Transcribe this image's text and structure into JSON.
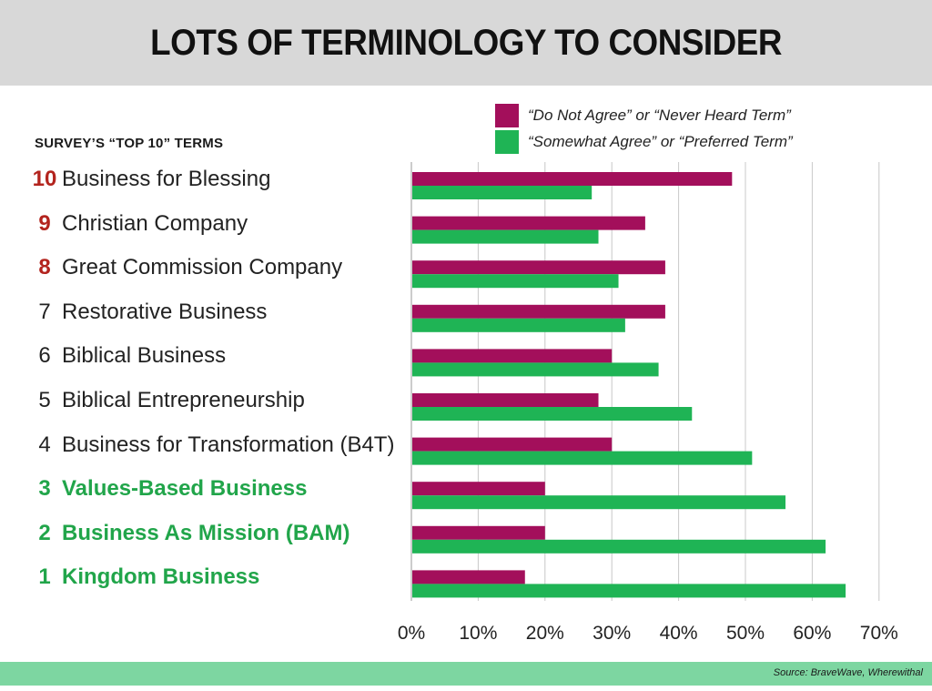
{
  "slide": {
    "title": "LOTS OF TERMINOLOGY TO CONSIDER",
    "subtitle": "SURVEY’S “TOP 10” TERMS",
    "source": "Source: BraveWave, Wherewithal"
  },
  "colors": {
    "disagree": "#a30f5b",
    "agree": "#1fb455",
    "rank_red": "#b3241e",
    "rank_green": "#21a54a",
    "footer": "#7dd6a1"
  },
  "terms": [
    {
      "rank": "10",
      "label": "Business for Blessing",
      "style": "red-rank"
    },
    {
      "rank": "9",
      "label": "Christian Company",
      "style": "red-rank"
    },
    {
      "rank": "8",
      "label": "Great Commission Company",
      "style": "red-rank"
    },
    {
      "rank": "7",
      "label": "Restorative Business",
      "style": "plain"
    },
    {
      "rank": "6",
      "label": "Biblical Business",
      "style": "plain"
    },
    {
      "rank": "5",
      "label": "Biblical Entrepreneurship",
      "style": "plain"
    },
    {
      "rank": "4",
      "label": "Business for Transformation (B4T)",
      "style": "plain"
    },
    {
      "rank": "3",
      "label": "Values-Based Business",
      "style": "green"
    },
    {
      "rank": "2",
      "label": "Business As Mission (BAM)",
      "style": "green"
    },
    {
      "rank": "1",
      "label": "Kingdom Business",
      "style": "green"
    }
  ],
  "chart_data": {
    "type": "bar",
    "orientation": "horizontal",
    "categories": [
      "Business for Blessing",
      "Christian Company",
      "Great Commission Company",
      "Restorative Business",
      "Biblical Business",
      "Biblical Entrepreneurship",
      "Business for Transformation (B4T)",
      "Values-Based Business",
      "Business As Mission (BAM)",
      "Kingdom Business"
    ],
    "series": [
      {
        "name": "“Do Not Agree” or “Never Heard Term”",
        "color": "#a30f5b",
        "values": [
          48,
          35,
          38,
          38,
          30,
          28,
          30,
          20,
          20,
          17
        ]
      },
      {
        "name": "“Somewhat Agree” or “Preferred Term”",
        "color": "#1fb455",
        "values": [
          27,
          28,
          31,
          32,
          37,
          42,
          51,
          56,
          62,
          65
        ]
      }
    ],
    "xlim": [
      0,
      70
    ],
    "x_ticks": [
      "0%",
      "10%",
      "20%",
      "30%",
      "40%",
      "50%",
      "60%",
      "70%"
    ],
    "grid": true,
    "legend_position": "top-right"
  }
}
